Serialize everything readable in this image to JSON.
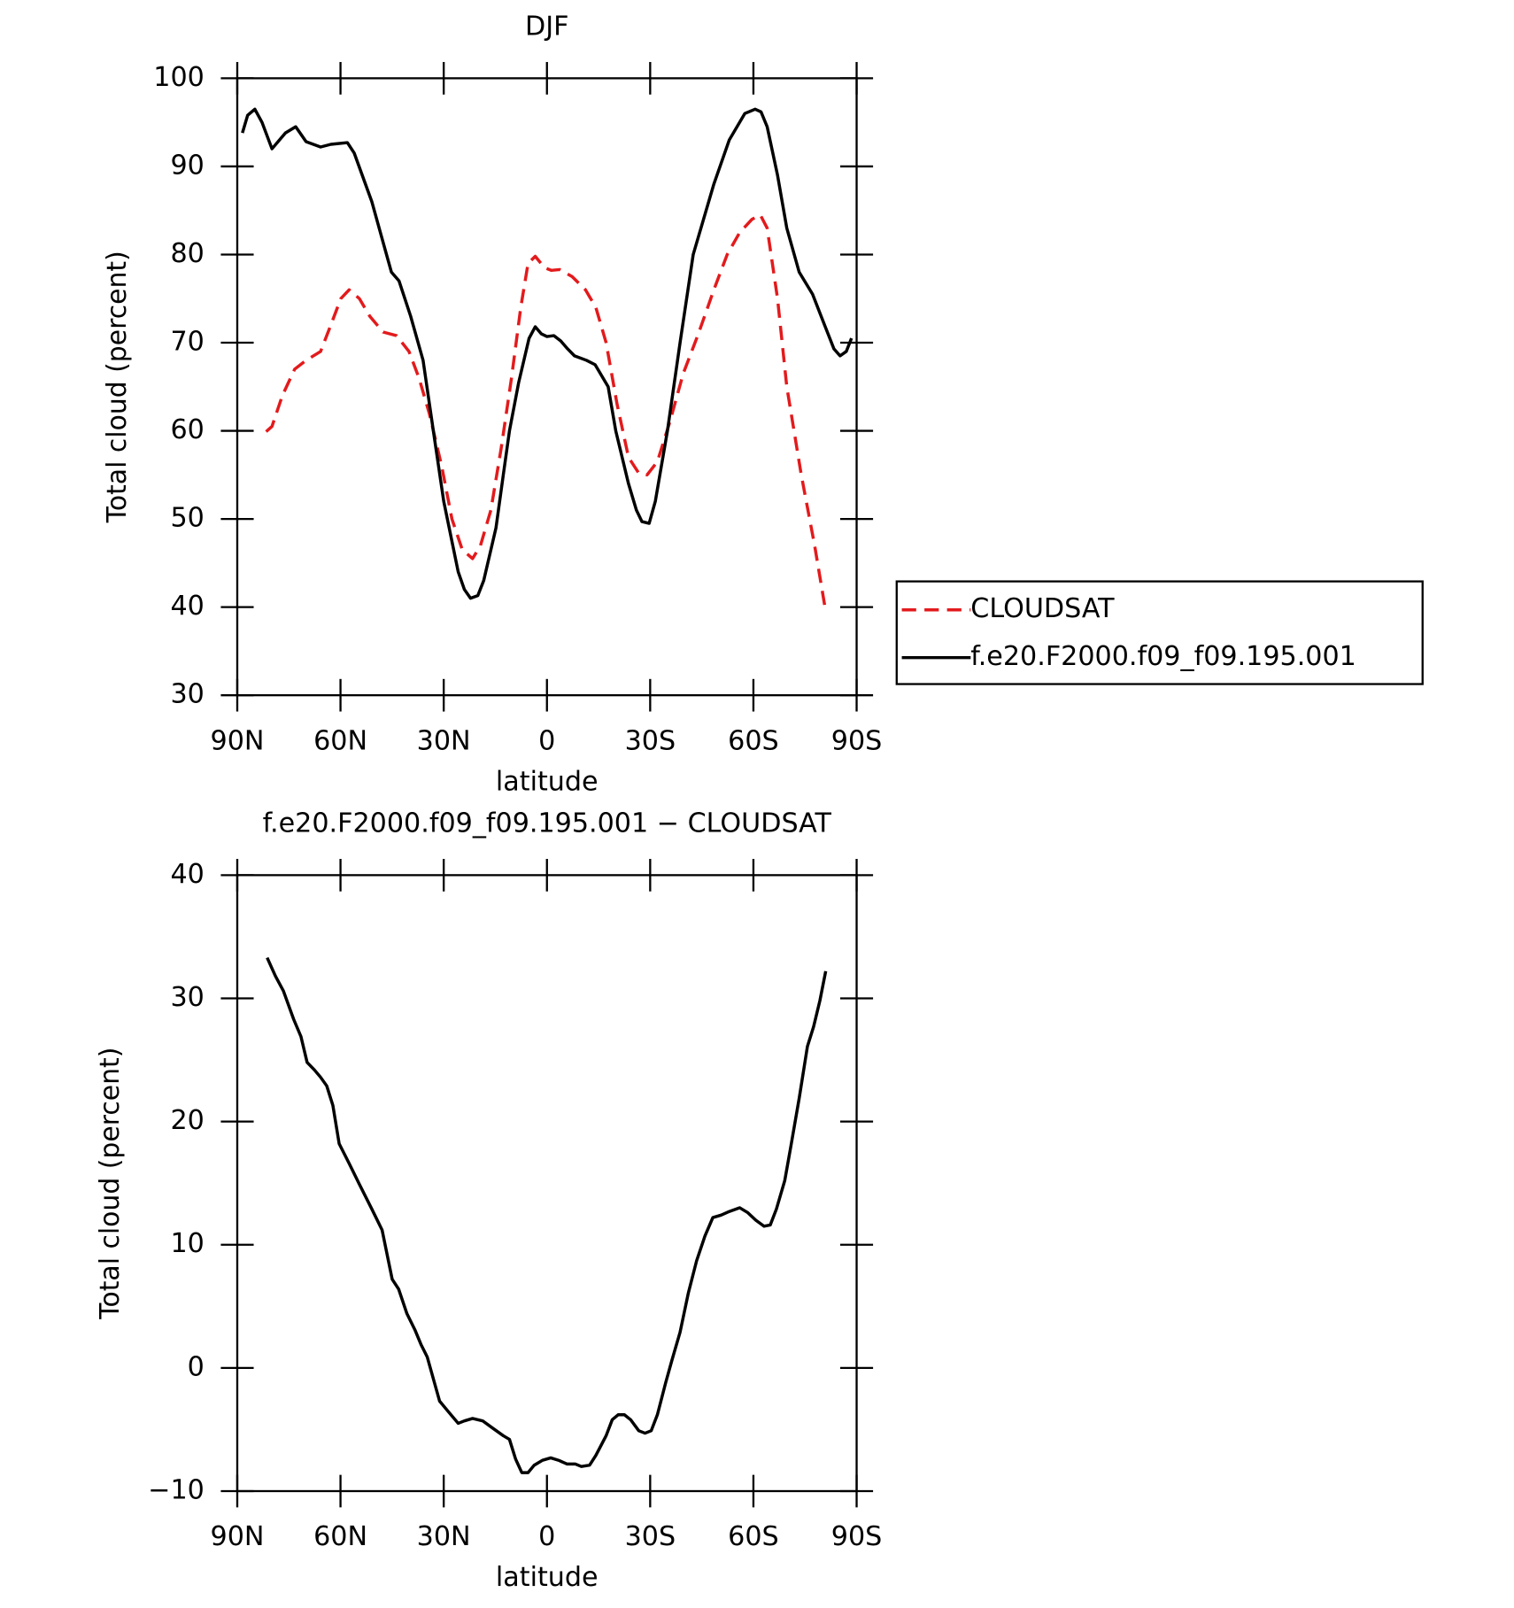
{
  "chart_data": [
    {
      "type": "line",
      "title": "DJF",
      "xlabel": "latitude",
      "ylabel": "Total cloud (percent)",
      "xlim": [
        90,
        -90
      ],
      "ylim": [
        30,
        100
      ],
      "xticks": [
        {
          "value": 90,
          "label": "90N"
        },
        {
          "value": 60,
          "label": "60N"
        },
        {
          "value": 30,
          "label": "30N"
        },
        0,
        {
          "value": -30,
          "label": "30S"
        },
        {
          "value": -60,
          "label": "60S"
        },
        {
          "value": -90,
          "label": "90S"
        }
      ],
      "yticks": [
        30,
        40,
        50,
        60,
        70,
        80,
        90,
        100
      ],
      "legend": "right",
      "series": [
        {
          "name": "CLOUDSAT",
          "color": "#e31a1c",
          "style": "dashed",
          "x": [
            81.6,
            79.9,
            76.9,
            73.3,
            70,
            65.8,
            62.8,
            59.9,
            57.5,
            54.5,
            51.5,
            47.6,
            43.7,
            40.1,
            37.2,
            34.2,
            30.6,
            27.6,
            24.6,
            21.6,
            19.3,
            16.3,
            13.3,
            10.3,
            7.6,
            5.5,
            3.4,
            0.7,
            -1.3,
            -3.7,
            -7.3,
            -11.2,
            -14.2,
            -17.2,
            -20.4,
            -23.7,
            -26.7,
            -29.1,
            -32.1,
            -35.7,
            -39.6,
            -44,
            -48.5,
            -52.4,
            -56,
            -59.6,
            -62,
            -64,
            -67,
            -69.7,
            -73.9,
            -77.8,
            -81
          ],
          "values": [
            59.9,
            60.5,
            64,
            67,
            68,
            69,
            72,
            75,
            76,
            75,
            73,
            71.2,
            70.8,
            69,
            66,
            62,
            56,
            50,
            46.5,
            45.5,
            47,
            51,
            58,
            66,
            74,
            79,
            79.8,
            78.5,
            78.2,
            78.3,
            77.5,
            76,
            74,
            70,
            63,
            57,
            55.2,
            55,
            56.5,
            61,
            66.5,
            71,
            76,
            80,
            82.5,
            84,
            84.5,
            83,
            75,
            65,
            55,
            47,
            39.5
          ]
        },
        {
          "name": "f.e20.F2000.f09_f09.195.001",
          "color": "#000000",
          "style": "solid",
          "x": [
            88.5,
            87,
            84.9,
            82.8,
            79.9,
            76,
            73,
            70,
            65.8,
            62.8,
            58,
            56,
            50.9,
            47,
            45.2,
            43,
            39.6,
            36,
            33,
            30,
            25.8,
            24,
            22.2,
            20.1,
            18.4,
            16.6,
            14.8,
            12.7,
            10.9,
            8.2,
            5.2,
            3.4,
            1.6,
            0,
            -2,
            -4,
            -6,
            -8,
            -11.5,
            -14,
            -17.8,
            -20,
            -23.7,
            -26,
            -27.6,
            -29.7,
            -31.5,
            -35,
            -38.7,
            -42.5,
            -48.5,
            -53,
            -57.5,
            -60.5,
            -62.2,
            -64,
            -67,
            -69.7,
            -73.3,
            -77.2,
            -80.7,
            -83.4,
            -85.2,
            -87,
            -88.5
          ],
          "values": [
            93.8,
            95.8,
            96.5,
            95,
            92,
            93.8,
            94.5,
            92.8,
            92.2,
            92.5,
            92.7,
            91.5,
            86,
            80.5,
            78,
            77,
            73,
            68,
            60,
            52,
            44,
            42,
            41,
            41.3,
            43,
            46,
            49,
            55,
            60,
            65.5,
            70.5,
            71.8,
            71,
            70.7,
            70.8,
            70.2,
            69.3,
            68.5,
            68,
            67.5,
            65,
            60,
            54,
            51,
            49.7,
            49.5,
            52,
            60,
            70,
            80,
            88,
            93,
            96,
            96.5,
            96.2,
            94.5,
            89,
            83,
            78,
            75.5,
            72,
            69.3,
            68.5,
            69,
            70.5
          ]
        }
      ]
    },
    {
      "type": "line",
      "title": "f.e20.F2000.f09_f09.195.001 − CLOUDSAT",
      "xlabel": "latitude",
      "ylabel": "Total cloud (percent)",
      "xlim": [
        90,
        -90
      ],
      "ylim": [
        -10,
        40
      ],
      "xticks": [
        {
          "value": 90,
          "label": "90N"
        },
        {
          "value": 60,
          "label": "60N"
        },
        {
          "value": 30,
          "label": "30N"
        },
        0,
        {
          "value": -30,
          "label": "30S"
        },
        {
          "value": -60,
          "label": "60S"
        },
        {
          "value": -90,
          "label": "90S"
        }
      ],
      "yticks": [
        {
          "value": -10,
          "label": "−10"
        },
        0,
        10,
        20,
        30,
        40
      ],
      "color": "#000000",
      "x": [
        81.3,
        78.9,
        76.6,
        73.6,
        71.5,
        69.7,
        67.6,
        65.8,
        64,
        62.2,
        60.4,
        57.5,
        54.5,
        50.9,
        47.9,
        45,
        43.1,
        40.7,
        38.4,
        36.6,
        34.8,
        31.2,
        28.8,
        25.8,
        24,
        21.6,
        18.7,
        15.7,
        12.7,
        10.9,
        9.1,
        7.3,
        5.5,
        3.7,
        1.3,
        -1.1,
        -3.4,
        -5.8,
        -8.2,
        -10,
        -12.4,
        -14.2,
        -17.2,
        -19,
        -20.7,
        -22.5,
        -24.3,
        -26.7,
        -28.5,
        -30.3,
        -32.1,
        -34.5,
        -36.3,
        -38.7,
        -41.1,
        -43.5,
        -45.9,
        -48.2,
        -50.6,
        -53,
        -56,
        -58.4,
        -60.7,
        -63.1,
        -64.9,
        -66.7,
        -69.1,
        -70.9,
        -73.3,
        -75.7,
        -77.5,
        -79.3,
        -81
      ],
      "values": [
        33.3,
        31.8,
        30.6,
        28.3,
        26.9,
        24.8,
        24.2,
        23.6,
        22.9,
        21.3,
        18.2,
        16.6,
        14.9,
        12.9,
        11.2,
        7.2,
        6.4,
        4.4,
        3.1,
        1.9,
        0.9,
        -2.7,
        -3.5,
        -4.5,
        -4.3,
        -4.1,
        -4.3,
        -4.9,
        -5.5,
        -5.8,
        -7.4,
        -8.5,
        -8.5,
        -7.9,
        -7.5,
        -7.3,
        -7.5,
        -7.8,
        -7.8,
        -8,
        -7.9,
        -7.1,
        -5.5,
        -4.2,
        -3.8,
        -3.8,
        -4.2,
        -5.1,
        -5.3,
        -5.1,
        -3.8,
        -1.2,
        0.6,
        2.9,
        6.1,
        8.7,
        10.7,
        12.2,
        12.4,
        12.7,
        13,
        12.6,
        12,
        11.5,
        11.6,
        12.9,
        15.2,
        18,
        21.9,
        26.1,
        27.7,
        29.8,
        32.2
      ]
    }
  ]
}
